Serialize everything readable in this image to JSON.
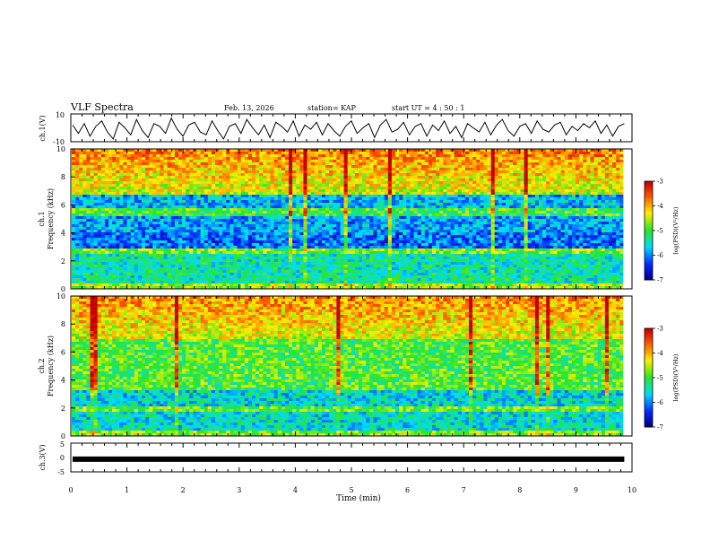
{
  "header": {
    "title": "VLF Spectra",
    "date": "Feb. 13, 2026",
    "station": "station= KAP",
    "start": "start  UT =   4 : 50 : 1"
  },
  "chart_data": [
    {
      "id": "ch1_waveform",
      "type": "line",
      "ylabel": "ch.1(V)",
      "ylim": [
        -10,
        10
      ],
      "yticks": [
        "10",
        "-10"
      ],
      "xlim": [
        0,
        10
      ],
      "samples": [
        2,
        -4,
        3,
        -6,
        1,
        5,
        -3,
        -8,
        4,
        0,
        -5,
        6,
        -2,
        -7,
        3,
        1,
        -4,
        7,
        -1,
        -6,
        2,
        4,
        -3,
        -5,
        5,
        -2,
        -8,
        1,
        3,
        -4,
        6,
        0,
        -5,
        2,
        -7,
        4,
        1,
        -3,
        5,
        -6,
        2,
        -1,
        4,
        -5,
        3,
        -2,
        -6,
        1,
        5,
        -4,
        0,
        3,
        -7,
        2,
        6,
        -3,
        -1,
        4,
        -5,
        1,
        3,
        -6,
        2,
        -2,
        5,
        -4,
        1,
        -7,
        3,
        0,
        -3,
        4,
        -5,
        2,
        6,
        -2,
        -6,
        1,
        3,
        -4,
        5,
        -1,
        -3,
        2,
        4,
        -5,
        1,
        -2,
        3,
        0,
        5,
        -4,
        2,
        -6,
        1,
        3
      ]
    },
    {
      "id": "ch1_spectrogram",
      "type": "heatmap",
      "ylabel": "Frequency (kHz)",
      "label": "ch.1",
      "ylim": [
        0,
        10
      ],
      "yticks": [
        "0",
        "2",
        "4",
        "6",
        "8",
        "10"
      ],
      "xlim": [
        0,
        10
      ],
      "colorbar": {
        "label": "log(PSD)(V²/Hz)",
        "range": [
          -7,
          -3
        ],
        "ticks": [
          "-3",
          "-4",
          "-5",
          "-6",
          "-7"
        ]
      }
    },
    {
      "id": "ch2_spectrogram",
      "type": "heatmap",
      "ylabel": "Frequency (kHz)",
      "label": "ch.2",
      "ylim": [
        0,
        10
      ],
      "yticks": [
        "0",
        "2",
        "4",
        "6",
        "8",
        "10"
      ],
      "xlim": [
        0,
        10
      ],
      "colorbar": {
        "label": "log(PSD)(V²/Hz)",
        "range": [
          -7,
          -3
        ],
        "ticks": [
          "-3",
          "-4",
          "-5",
          "-6",
          "-7"
        ]
      }
    },
    {
      "id": "ch3_waveform",
      "type": "line",
      "ylabel": "ch.3(V)",
      "ylim": [
        -5,
        5
      ],
      "yticks": [
        "5",
        "0",
        "-5"
      ],
      "xlim": [
        0,
        10
      ],
      "samples": [
        -0.6,
        -0.6,
        -0.6,
        -0.6,
        -0.6,
        -0.6
      ]
    }
  ],
  "xaxis": {
    "label": "Time (min)",
    "ticks": [
      "0",
      "1",
      "2",
      "3",
      "4",
      "5",
      "6",
      "7",
      "8",
      "9",
      "10"
    ]
  }
}
